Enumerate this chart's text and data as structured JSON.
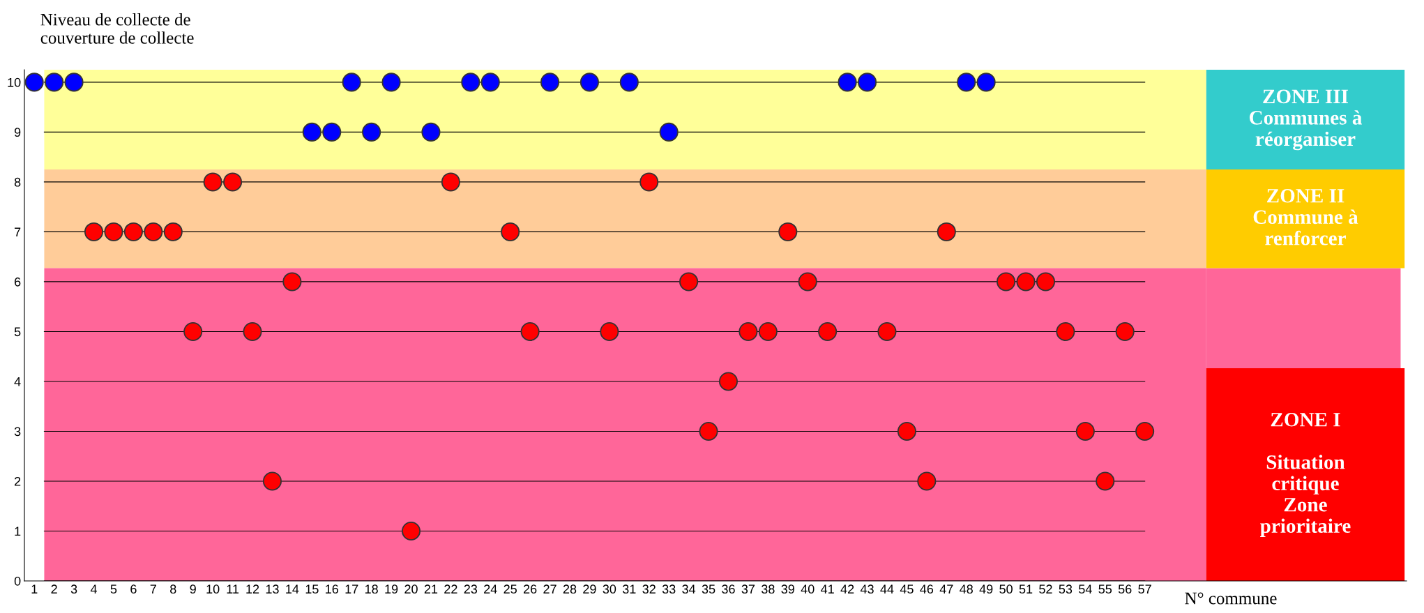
{
  "chart_data": {
    "type": "scatter",
    "ylabel": "Niveau de collecte de\ncouverture de collecte",
    "xlabel": "N° commune",
    "categories": [
      "1",
      "2",
      "3",
      "4",
      "5",
      "6",
      "7",
      "8",
      "9",
      "10",
      "11",
      "12",
      "13",
      "14",
      "15",
      "16",
      "17",
      "18",
      "19",
      "20",
      "21",
      "22",
      "23",
      "24",
      "25",
      "26",
      "27",
      "28",
      "29",
      "30",
      "31",
      "32",
      "33",
      "34",
      "35",
      "36",
      "37",
      "38",
      "39",
      "40",
      "41",
      "42",
      "43",
      "44",
      "45",
      "46",
      "47",
      "48",
      "49",
      "50",
      "51",
      "52",
      "53",
      "54",
      "55",
      "56",
      "57"
    ],
    "series": [
      {
        "color": "#0000ff",
        "values": [
          10,
          10,
          10,
          null,
          null,
          null,
          null,
          null,
          null,
          null,
          null,
          null,
          null,
          null,
          9,
          9,
          10,
          9,
          10,
          null,
          9,
          null,
          10,
          10,
          null,
          null,
          10,
          null,
          10,
          null,
          10,
          null,
          9,
          null,
          null,
          null,
          null,
          null,
          null,
          null,
          null,
          10,
          10,
          null,
          null,
          null,
          null,
          10,
          10,
          null,
          null,
          null,
          null,
          null,
          null,
          null,
          null
        ]
      },
      {
        "color": "#ff0000",
        "values": [
          null,
          null,
          null,
          7,
          7,
          7,
          7,
          7,
          5,
          8,
          8,
          5,
          2,
          6,
          null,
          null,
          null,
          null,
          null,
          1,
          null,
          8,
          null,
          null,
          7,
          5,
          null,
          null,
          null,
          5,
          null,
          8,
          null,
          6,
          3,
          4,
          5,
          5,
          7,
          6,
          5,
          null,
          null,
          5,
          3,
          2,
          7,
          null,
          null,
          6,
          6,
          6,
          5,
          3,
          2,
          5,
          3
        ]
      }
    ],
    "ylim": [
      0,
      10.25
    ],
    "yticks": [
      0,
      1,
      2,
      3,
      4,
      5,
      6,
      7,
      8,
      9,
      10
    ],
    "grid": "y",
    "marker": "circle",
    "bands": [
      {
        "axis": "y",
        "from": 8.25,
        "to": 10.25,
        "label": "ZONE III\nCommunes à\nréorganiser",
        "color": "#ffff99"
      },
      {
        "axis": "y",
        "from": 6.27,
        "to": 8.25,
        "label": "ZONE II\nCommune à\nrenforcer",
        "color": "#ffcc99"
      },
      {
        "axis": "y",
        "from": 0,
        "to": 6.27,
        "label": "ZONE I\n\nSituation\ncritique\nZone\nprioritaire",
        "color": "#ff6699"
      }
    ]
  }
}
